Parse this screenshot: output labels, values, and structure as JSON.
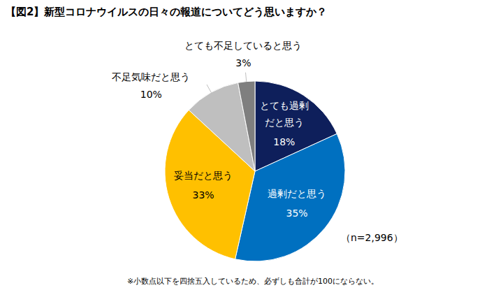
{
  "chart_data": {
    "type": "pie",
    "title": "【図2】新型コロナウイルスの日々の報道についてどう思いますか？",
    "categories": [
      "とても過剰だと思う",
      "過剰だと思う",
      "妥当だと思う",
      "不足気味だと思う",
      "とても不足していると思う"
    ],
    "values": [
      18,
      35,
      33,
      10,
      3
    ],
    "value_labels": [
      "18%",
      "35%",
      "33%",
      "10%",
      "3%"
    ],
    "colors": [
      "#0e1f5b",
      "#0070c0",
      "#ffc000",
      "#bfbfbf",
      "#7f7f7f"
    ],
    "data_labels": true,
    "annotations": [
      "（n=2,996）",
      "※小数点以下を四捨五入しているため、必ずしも合計が100にならない。"
    ]
  }
}
